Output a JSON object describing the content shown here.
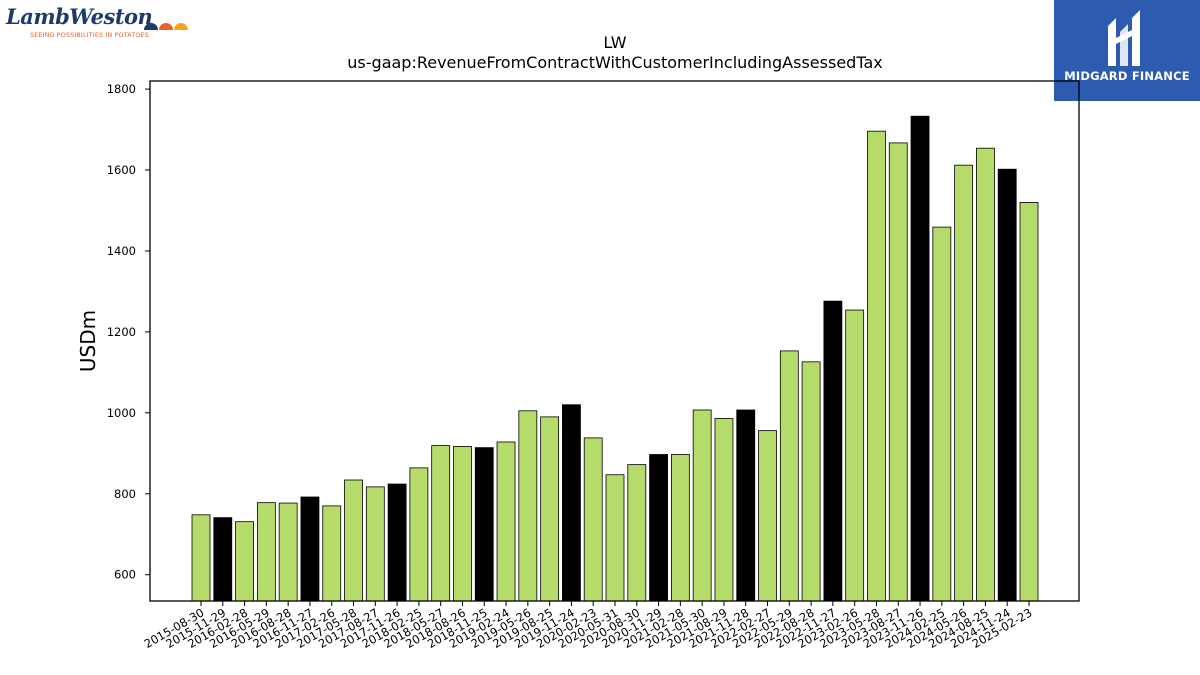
{
  "logos": {
    "left_wordmark": "LambWeston",
    "left_tagline": "SEEING POSSIBILITIES IN POTATOES",
    "right_brand": "MIDGARD FINANCE"
  },
  "colors": {
    "bar_normal": "#b5dc6a",
    "bar_highlight": "#000000",
    "brand_blue": "#2c5bb0"
  },
  "chart_data": {
    "type": "bar",
    "title": "LW",
    "subtitle": "us-gaap:RevenueFromContractWithCustomerIncludingAssessedTax",
    "xlabel": "",
    "ylabel": "USDm",
    "ylim": [
      535,
      1820
    ],
    "yticks": [
      600,
      800,
      1000,
      1200,
      1400,
      1600,
      1800
    ],
    "grid": false,
    "categories": [
      "2015-08-30",
      "2015-11-29",
      "2016-02-28",
      "2016-05-29",
      "2016-08-28",
      "2016-11-27",
      "2017-02-26",
      "2017-05-28",
      "2017-08-27",
      "2017-11-26",
      "2018-02-25",
      "2018-05-27",
      "2018-08-26",
      "2018-11-25",
      "2019-02-24",
      "2019-05-26",
      "2019-08-25",
      "2019-11-24",
      "2020-02-23",
      "2020-05-31",
      "2020-08-30",
      "2020-11-29",
      "2021-02-28",
      "2021-05-30",
      "2021-08-29",
      "2021-11-28",
      "2022-02-27",
      "2022-05-29",
      "2022-08-28",
      "2022-11-27",
      "2023-02-26",
      "2023-05-28",
      "2023-08-27",
      "2023-11-26",
      "2024-02-25",
      "2024-05-26",
      "2024-08-25",
      "2024-11-24",
      "2025-02-23"
    ],
    "values": [
      748,
      741,
      731,
      778,
      777,
      792,
      770,
      834,
      817,
      824,
      864,
      919,
      917,
      914,
      928,
      1005,
      990,
      1020,
      938,
      847,
      872,
      897,
      897,
      1007,
      986,
      1007,
      956,
      1153,
      1126,
      1276,
      1254,
      1696,
      1667,
      1733,
      1459,
      1612,
      1654,
      1602,
      1520
    ],
    "highlighted": [
      1,
      5,
      9,
      13,
      17,
      21,
      25,
      29,
      33,
      37
    ]
  }
}
